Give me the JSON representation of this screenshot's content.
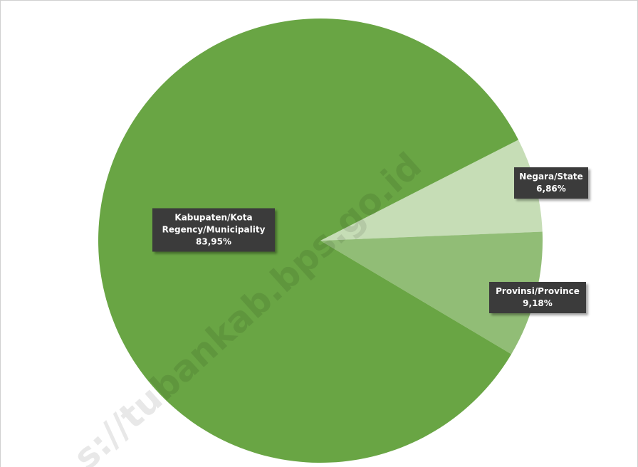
{
  "chart_data": {
    "type": "pie",
    "categories": [
      [
        "Negara/State"
      ],
      [
        "Provinsi/Province"
      ],
      [
        "Kabupaten/Kota",
        "Regency/Municipality"
      ]
    ],
    "values": [
      6.86,
      9.18,
      83.95
    ],
    "value_labels": [
      "6,86%",
      "9,18%",
      "83,95%"
    ],
    "colors": [
      "#c6ddb6",
      "#91bd76",
      "#69a544"
    ],
    "watermark": "s://tubankab.bps.go.id"
  }
}
